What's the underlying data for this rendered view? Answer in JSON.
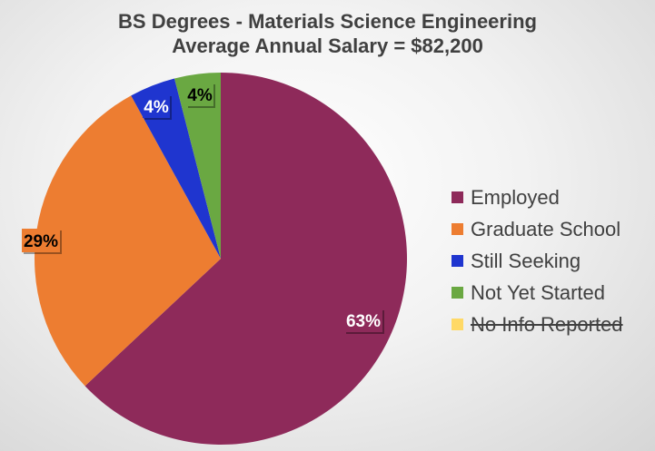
{
  "chart_data": {
    "type": "pie",
    "title": "BS Degrees - Materials Science Engineering",
    "subtitle": "Average Annual Salary = $82,200",
    "categories": [
      "Employed",
      "Graduate School",
      "Still Seeking",
      "Not Yet Started",
      "No Info Reported"
    ],
    "values": [
      63,
      29,
      4,
      4,
      0
    ],
    "labels": [
      "63%",
      "29%",
      "4%",
      "4%",
      ""
    ],
    "colors": [
      "#8e2a5a",
      "#ed7d31",
      "#1f35cf",
      "#6aa842",
      "#ffd966"
    ],
    "label_text_colors": [
      "#ffffff",
      "#000000",
      "#ffffff",
      "#000000",
      "#000000"
    ],
    "legend_position": "right",
    "legend_hidden": [
      false,
      false,
      false,
      false,
      true
    ]
  }
}
